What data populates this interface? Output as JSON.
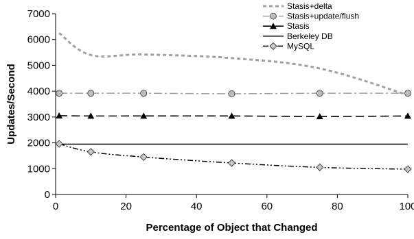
{
  "chart_data": {
    "type": "line",
    "title": "",
    "xlabel": "Percentage of Object that Changed",
    "ylabel": "Updates/Second",
    "xlim": [
      0,
      100
    ],
    "ylim": [
      0,
      7000
    ],
    "xticks": [
      0,
      20,
      40,
      60,
      80,
      100
    ],
    "yticks": [
      0,
      1000,
      2000,
      3000,
      4000,
      5000,
      6000,
      7000
    ],
    "grid": false,
    "legend_position": "top-right",
    "series": [
      {
        "name": "Stasis+delta",
        "color": "#a0a0a0",
        "dash": "short-dash",
        "marker": "none",
        "x": [
          1,
          10,
          25,
          50,
          75,
          100
        ],
        "y": [
          6250,
          5400,
          5420,
          5280,
          4880,
          3850
        ]
      },
      {
        "name": "Stasis+update/flush",
        "color": "#a0a0a0",
        "dash": "dash-dot",
        "marker": "circle",
        "x": [
          1,
          10,
          25,
          50,
          75,
          100
        ],
        "y": [
          3920,
          3920,
          3920,
          3900,
          3920,
          3920
        ]
      },
      {
        "name": "Stasis",
        "color": "#000000",
        "dash": "long-dash",
        "marker": "triangle",
        "x": [
          1,
          10,
          25,
          50,
          75,
          100
        ],
        "y": [
          3050,
          3040,
          3040,
          3040,
          3020,
          3040
        ]
      },
      {
        "name": "Berkeley DB",
        "color": "#000000",
        "dash": "solid",
        "marker": "none",
        "x": [
          1,
          10,
          25,
          50,
          75,
          100
        ],
        "y": [
          1950,
          1950,
          1950,
          1950,
          1950,
          1950
        ]
      },
      {
        "name": "MySQL",
        "color": "#000000",
        "dash": "dash-dot-dot",
        "marker": "diamond",
        "x": [
          1,
          10,
          25,
          50,
          75,
          100
        ],
        "y": [
          1960,
          1650,
          1450,
          1220,
          1050,
          980
        ]
      }
    ]
  }
}
